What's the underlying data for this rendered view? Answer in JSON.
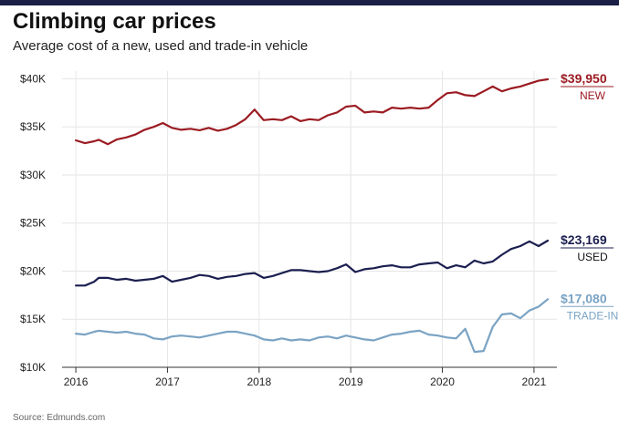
{
  "header": {
    "title": "Climbing car prices",
    "subtitle": "Average cost of a new, used and trade-in vehicle"
  },
  "footer": {
    "source": "Source: Edmunds.com"
  },
  "chart_data": {
    "type": "line",
    "title": "Climbing car prices",
    "subtitle": "Average cost of a new, used and trade-in vehicle",
    "xlabel": "",
    "ylabel": "",
    "xlim": [
      2015.85,
      2021.25
    ],
    "ylim": [
      10000,
      40800
    ],
    "x_ticks": [
      2016,
      2017,
      2018,
      2019,
      2020,
      2021
    ],
    "x_tick_labels": [
      "2016",
      "2017",
      "2018",
      "2019",
      "2020",
      "2021"
    ],
    "y_ticks": [
      10000,
      15000,
      20000,
      25000,
      30000,
      35000,
      40000
    ],
    "y_tick_labels": [
      "$10K",
      "$15K",
      "$20K",
      "$25K",
      "$30K",
      "$35K",
      "$40K"
    ],
    "grid": true,
    "legend": "end-of-line labels",
    "series": [
      {
        "name": "NEW",
        "end_label": "$39,950",
        "color": "#9b1b22",
        "x": [
          2016.0,
          2016.1,
          2016.2,
          2016.25,
          2016.35,
          2016.45,
          2016.55,
          2016.65,
          2016.75,
          2016.85,
          2016.95,
          2017.05,
          2017.15,
          2017.25,
          2017.35,
          2017.45,
          2017.55,
          2017.65,
          2017.75,
          2017.85,
          2017.95,
          2018.05,
          2018.15,
          2018.25,
          2018.35,
          2018.45,
          2018.55,
          2018.65,
          2018.75,
          2018.85,
          2018.95,
          2019.05,
          2019.15,
          2019.25,
          2019.35,
          2019.45,
          2019.55,
          2019.65,
          2019.75,
          2019.85,
          2019.95,
          2020.05,
          2020.15,
          2020.25,
          2020.35,
          2020.45,
          2020.55,
          2020.65,
          2020.75,
          2020.85,
          2020.95,
          2021.05,
          2021.15
        ],
        "values": [
          33600,
          33300,
          33500,
          33650,
          33200,
          33700,
          33900,
          34200,
          34700,
          35000,
          35400,
          34900,
          34700,
          34800,
          34650,
          34900,
          34600,
          34800,
          35200,
          35800,
          36800,
          35700,
          35800,
          35700,
          36100,
          35600,
          35800,
          35700,
          36200,
          36500,
          37100,
          37200,
          36500,
          36600,
          36500,
          37000,
          36900,
          37000,
          36900,
          37000,
          37800,
          38500,
          38600,
          38300,
          38200,
          38700,
          39200,
          38700,
          39000,
          39200,
          39500,
          39800,
          39950
        ]
      },
      {
        "name": "USED",
        "end_label": "$23,169",
        "color": "#1b1f4f",
        "x": [
          2016.0,
          2016.1,
          2016.2,
          2016.25,
          2016.35,
          2016.45,
          2016.55,
          2016.65,
          2016.75,
          2016.85,
          2016.95,
          2017.05,
          2017.15,
          2017.25,
          2017.35,
          2017.45,
          2017.55,
          2017.65,
          2017.75,
          2017.85,
          2017.95,
          2018.05,
          2018.15,
          2018.25,
          2018.35,
          2018.45,
          2018.55,
          2018.65,
          2018.75,
          2018.85,
          2018.95,
          2019.05,
          2019.15,
          2019.25,
          2019.35,
          2019.45,
          2019.55,
          2019.65,
          2019.75,
          2019.85,
          2019.95,
          2020.05,
          2020.15,
          2020.25,
          2020.35,
          2020.45,
          2020.55,
          2020.65,
          2020.75,
          2020.85,
          2020.95,
          2021.05,
          2021.15
        ],
        "values": [
          18500,
          18500,
          18900,
          19300,
          19300,
          19100,
          19200,
          19000,
          19100,
          19200,
          19500,
          18900,
          19100,
          19300,
          19600,
          19500,
          19200,
          19400,
          19500,
          19700,
          19800,
          19300,
          19500,
          19800,
          20100,
          20100,
          20000,
          19900,
          20000,
          20300,
          20700,
          19900,
          20200,
          20300,
          20500,
          20600,
          20400,
          20400,
          20700,
          20800,
          20900,
          20300,
          20600,
          20400,
          21100,
          20800,
          21000,
          21700,
          22300,
          22600,
          23100,
          22600,
          23169
        ]
      },
      {
        "name": "TRADE-IN",
        "end_label": "$17,080",
        "color": "#7aa3c4",
        "x": [
          2016.0,
          2016.1,
          2016.2,
          2016.25,
          2016.35,
          2016.45,
          2016.55,
          2016.65,
          2016.75,
          2016.85,
          2016.95,
          2017.05,
          2017.15,
          2017.25,
          2017.35,
          2017.45,
          2017.55,
          2017.65,
          2017.75,
          2017.85,
          2017.95,
          2018.05,
          2018.15,
          2018.25,
          2018.35,
          2018.45,
          2018.55,
          2018.65,
          2018.75,
          2018.85,
          2018.95,
          2019.05,
          2019.15,
          2019.25,
          2019.35,
          2019.45,
          2019.55,
          2019.65,
          2019.75,
          2019.85,
          2019.95,
          2020.05,
          2020.15,
          2020.25,
          2020.35,
          2020.45,
          2020.55,
          2020.65,
          2020.75,
          2020.85,
          2020.95,
          2021.05,
          2021.15
        ],
        "values": [
          13500,
          13400,
          13700,
          13800,
          13700,
          13600,
          13700,
          13500,
          13400,
          13000,
          12900,
          13200,
          13300,
          13200,
          13100,
          13300,
          13500,
          13700,
          13700,
          13500,
          13300,
          12900,
          12800,
          13000,
          12800,
          12900,
          12800,
          13100,
          13200,
          13000,
          13300,
          13100,
          12900,
          12800,
          13100,
          13400,
          13500,
          13700,
          13800,
          13400,
          13300,
          13100,
          13000,
          14000,
          11600,
          11700,
          14200,
          15500,
          15600,
          15100,
          15900,
          16300,
          17080
        ]
      }
    ]
  }
}
